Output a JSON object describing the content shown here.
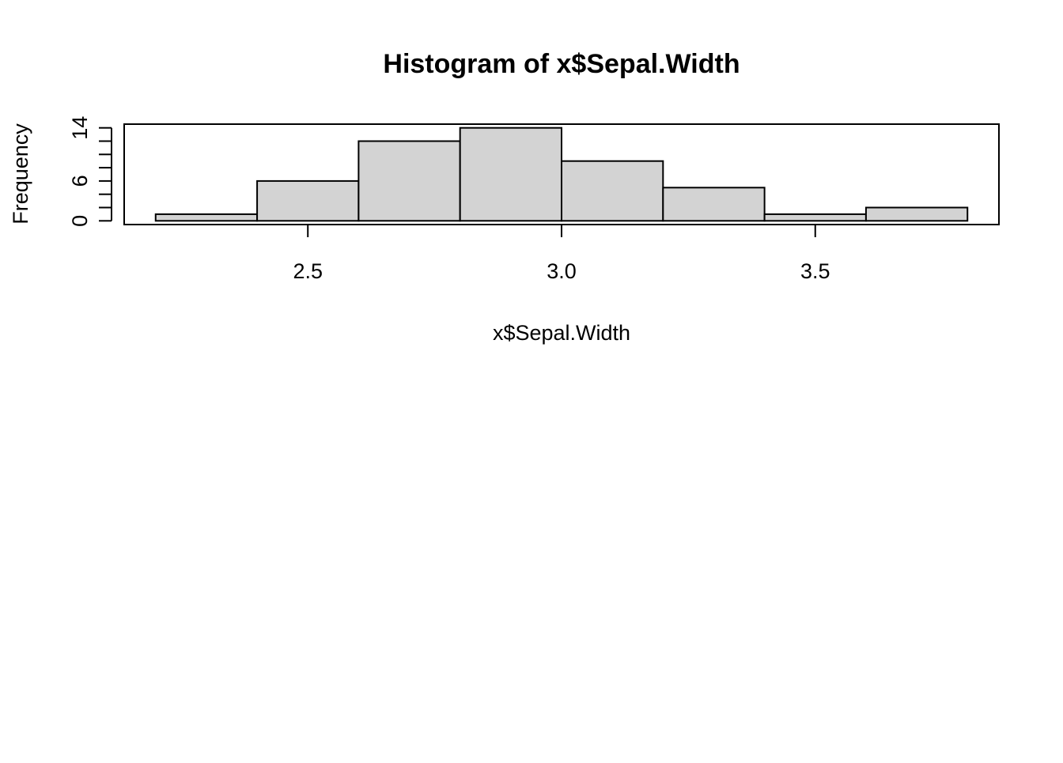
{
  "chart_data": {
    "type": "bar",
    "title": "Histogram of x$Sepal.Width",
    "xlabel": "x$Sepal.Width",
    "ylabel": "Frequency",
    "bins": [
      {
        "start": 2.2,
        "end": 2.4,
        "count": 1
      },
      {
        "start": 2.4,
        "end": 2.6,
        "count": 6
      },
      {
        "start": 2.6,
        "end": 2.8,
        "count": 12
      },
      {
        "start": 2.8,
        "end": 3.0,
        "count": 14
      },
      {
        "start": 3.0,
        "end": 3.2,
        "count": 9
      },
      {
        "start": 3.2,
        "end": 3.4,
        "count": 5
      },
      {
        "start": 3.4,
        "end": 3.6,
        "count": 1
      },
      {
        "start": 3.6,
        "end": 3.8,
        "count": 2
      }
    ],
    "xlim": [
      2.138,
      3.862
    ],
    "ylim": [
      -0.56,
      14.56
    ],
    "x_ticks": [
      2.5,
      3.0,
      3.5
    ],
    "x_tick_labels": [
      "2.5",
      "3.0",
      "3.5"
    ],
    "y_ticks": [
      0,
      2,
      4,
      6,
      8,
      10,
      12,
      14
    ],
    "y_tick_labels": [
      "0",
      "",
      "",
      "6",
      "",
      "",
      "",
      "14"
    ],
    "bar_fill": "#d3d3d3",
    "grid": false,
    "legend": "none"
  }
}
